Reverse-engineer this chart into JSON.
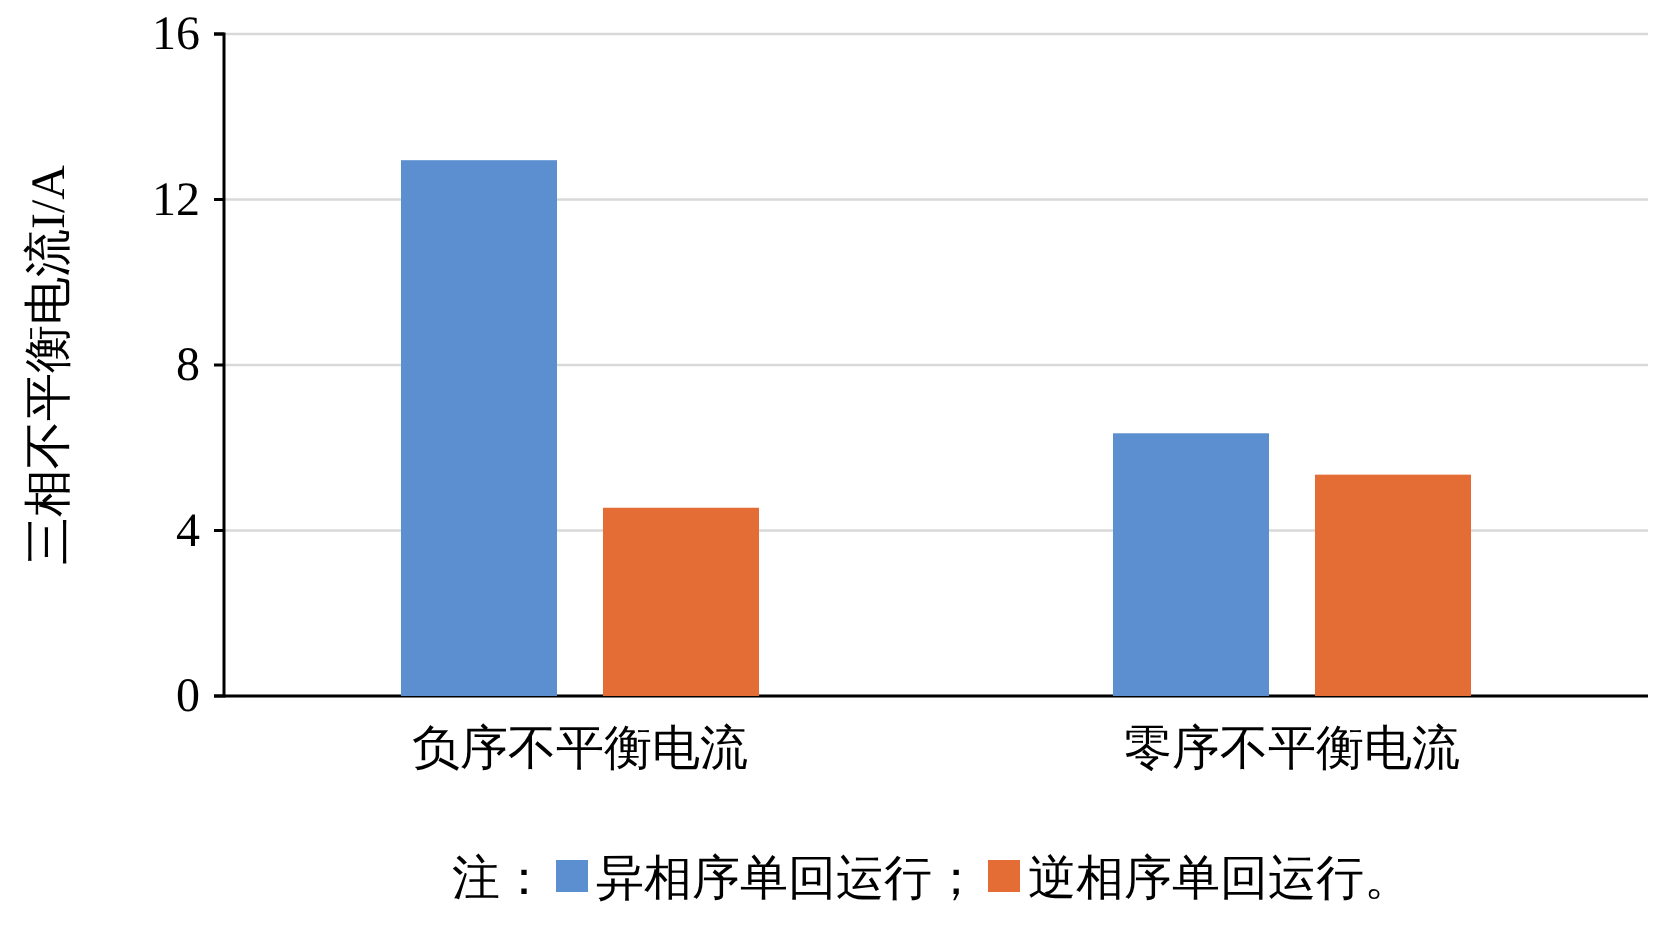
{
  "chart_data": {
    "type": "bar",
    "ylabel": "三相不平衡电流I/A",
    "categories": [
      "负序不平衡电流",
      "零序不平衡电流"
    ],
    "series": [
      {
        "name": "异相序单回运行；",
        "color": "#5b8fd0",
        "values": [
          12.95,
          6.35
        ]
      },
      {
        "name": "逆相序单回运行。",
        "color": "#e46c35",
        "values": [
          4.55,
          5.35
        ]
      }
    ],
    "legend_title": "注：",
    "legend": "bottom",
    "ylim": [
      0,
      16
    ],
    "yticks": [
      0,
      4,
      8,
      12,
      16
    ],
    "grid": "y"
  }
}
